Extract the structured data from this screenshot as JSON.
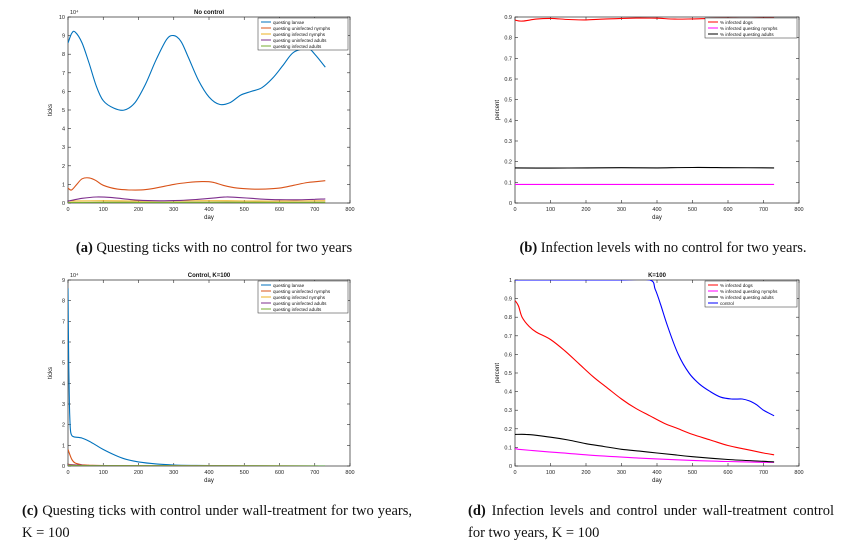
{
  "captions": [
    {
      "letter": "(a)",
      "text": "Questing ticks with no control for two years"
    },
    {
      "letter": "(b)",
      "text": "Infection levels with no control for two years."
    },
    {
      "letter": "(c)",
      "text": "Questing ticks with control under wall-treatment for two years, K = 100"
    },
    {
      "letter": "(d)",
      "text": "Infection levels and control under wall-treatment control for two years, K = 100"
    }
  ],
  "chart_data": [
    {
      "id": "a",
      "type": "line",
      "title": "No control",
      "xlabel": "day",
      "ylabel": "ticks",
      "exponent_label": "10⁴",
      "xlim": [
        0,
        800
      ],
      "ylim": [
        0,
        10
      ],
      "xticks": [
        0,
        100,
        200,
        300,
        400,
        500,
        600,
        700,
        800
      ],
      "yticks": [
        0,
        1,
        2,
        3,
        4,
        5,
        6,
        7,
        8,
        9,
        10
      ],
      "legend_position": "top-right",
      "series": [
        {
          "name": "questing larvae",
          "color": "#0072bd",
          "x": [
            0,
            10,
            20,
            40,
            60,
            80,
            100,
            130,
            160,
            190,
            220,
            250,
            280,
            300,
            320,
            340,
            370,
            400,
            430,
            460,
            490,
            520,
            550,
            580,
            610,
            640,
            680,
            700,
            730
          ],
          "y": [
            8.6,
            9.1,
            9.2,
            8.6,
            7.5,
            6.3,
            5.5,
            5.1,
            5.0,
            5.4,
            6.4,
            7.7,
            8.8,
            9.0,
            8.7,
            7.9,
            6.6,
            5.7,
            5.3,
            5.4,
            5.8,
            6.0,
            6.2,
            6.7,
            7.4,
            8.1,
            8.3,
            8.0,
            7.3
          ]
        },
        {
          "name": "questing uninfected nymphs",
          "color": "#d95319",
          "x": [
            0,
            10,
            25,
            40,
            60,
            80,
            100,
            140,
            180,
            220,
            260,
            300,
            340,
            380,
            410,
            440,
            480,
            520,
            560,
            600,
            640,
            680,
            730
          ],
          "y": [
            0.8,
            0.7,
            1.0,
            1.3,
            1.35,
            1.2,
            0.95,
            0.75,
            0.7,
            0.72,
            0.85,
            1.0,
            1.1,
            1.15,
            1.12,
            0.95,
            0.8,
            0.75,
            0.75,
            0.8,
            0.95,
            1.1,
            1.2
          ]
        },
        {
          "name": "questing infected nymphs",
          "color": "#edb120",
          "x": [
            0,
            100,
            200,
            300,
            400,
            500,
            600,
            730
          ],
          "y": [
            0.1,
            0.12,
            0.1,
            0.11,
            0.12,
            0.11,
            0.1,
            0.12
          ]
        },
        {
          "name": "questing uninfected adults",
          "color": "#7e2f8e",
          "x": [
            0,
            40,
            80,
            120,
            160,
            200,
            260,
            320,
            370,
            420,
            450,
            480,
            520,
            560,
            600,
            650,
            700,
            730
          ],
          "y": [
            0.1,
            0.25,
            0.32,
            0.3,
            0.22,
            0.15,
            0.12,
            0.14,
            0.2,
            0.28,
            0.33,
            0.3,
            0.25,
            0.2,
            0.18,
            0.17,
            0.2,
            0.22
          ]
        },
        {
          "name": "questing infected adults",
          "color": "#77ac30",
          "x": [
            0,
            100,
            200,
            300,
            400,
            500,
            600,
            730
          ],
          "y": [
            0.02,
            0.04,
            0.03,
            0.03,
            0.04,
            0.04,
            0.03,
            0.04
          ]
        }
      ]
    },
    {
      "id": "b",
      "type": "line",
      "title": "",
      "xlabel": "day",
      "ylabel": "percent",
      "xlim": [
        0,
        800
      ],
      "ylim": [
        0,
        0.9
      ],
      "xticks": [
        0,
        100,
        200,
        300,
        400,
        500,
        600,
        700,
        800
      ],
      "yticks": [
        0,
        0.1,
        0.2,
        0.3,
        0.4,
        0.5,
        0.6,
        0.7,
        0.8,
        0.9
      ],
      "legend_position": "top-right",
      "series": [
        {
          "name": "% infected dogs",
          "color": "#ff0000",
          "x": [
            0,
            20,
            60,
            100,
            150,
            200,
            250,
            300,
            350,
            400,
            450,
            500,
            550,
            600,
            650,
            700,
            730
          ],
          "y": [
            0.885,
            0.88,
            0.89,
            0.893,
            0.888,
            0.886,
            0.89,
            0.893,
            0.895,
            0.894,
            0.89,
            0.891,
            0.893,
            0.894,
            0.893,
            0.895,
            0.895
          ]
        },
        {
          "name": "% infected questing nymphs",
          "color": "#ff00ff",
          "x": [
            0,
            730
          ],
          "y": [
            0.09,
            0.09
          ]
        },
        {
          "name": "% infected questing adults",
          "color": "#000000",
          "x": [
            0,
            100,
            200,
            300,
            400,
            500,
            600,
            730
          ],
          "y": [
            0.17,
            0.169,
            0.17,
            0.171,
            0.17,
            0.172,
            0.171,
            0.17
          ]
        }
      ]
    },
    {
      "id": "c",
      "type": "line",
      "title": "Control, K=100",
      "xlabel": "day",
      "ylabel": "ticks",
      "exponent_label": "10⁴",
      "xlim": [
        0,
        800
      ],
      "ylim": [
        0,
        9
      ],
      "xticks": [
        0,
        100,
        200,
        300,
        400,
        500,
        600,
        700,
        800
      ],
      "yticks": [
        0,
        1,
        2,
        3,
        4,
        5,
        6,
        7,
        8,
        9
      ],
      "legend_position": "top-right",
      "series": [
        {
          "name": "questing larvae",
          "color": "#0072bd",
          "x": [
            0,
            2,
            4,
            6,
            8,
            12,
            20,
            40,
            60,
            80,
            100,
            130,
            160,
            200,
            250,
            300,
            350,
            400,
            500,
            600,
            730
          ],
          "y": [
            8.6,
            5.0,
            3.0,
            2.0,
            1.6,
            1.45,
            1.4,
            1.35,
            1.2,
            1.0,
            0.8,
            0.55,
            0.35,
            0.2,
            0.1,
            0.05,
            0.03,
            0.02,
            0.01,
            0.005,
            0.003
          ]
        },
        {
          "name": "questing uninfected nymphs",
          "color": "#d95319",
          "x": [
            0,
            10,
            20,
            40,
            60,
            100,
            200,
            400,
            730
          ],
          "y": [
            0.8,
            0.35,
            0.15,
            0.06,
            0.04,
            0.02,
            0.01,
            0.005,
            0.002
          ]
        },
        {
          "name": "questing infected nymphs",
          "color": "#edb120",
          "x": [
            0,
            40,
            100,
            730
          ],
          "y": [
            0.08,
            0.04,
            0.02,
            0.0
          ]
        },
        {
          "name": "questing uninfected adults",
          "color": "#7e2f8e",
          "x": [
            0,
            40,
            100,
            730
          ],
          "y": [
            0.06,
            0.04,
            0.02,
            0.0
          ]
        },
        {
          "name": "questing infected adults",
          "color": "#77ac30",
          "x": [
            0,
            100,
            730
          ],
          "y": [
            0.02,
            0.01,
            0.0
          ]
        }
      ]
    },
    {
      "id": "d",
      "type": "line",
      "title": "K=100",
      "xlabel": "day",
      "ylabel": "percent",
      "xlim": [
        0,
        800
      ],
      "ylim": [
        0,
        1
      ],
      "xticks": [
        0,
        100,
        200,
        300,
        400,
        500,
        600,
        700,
        800
      ],
      "yticks": [
        0,
        0.1,
        0.2,
        0.3,
        0.4,
        0.5,
        0.6,
        0.7,
        0.8,
        0.9,
        1
      ],
      "legend_position": "top-right",
      "series": [
        {
          "name": "% infected dogs",
          "color": "#ff0000",
          "x": [
            0,
            10,
            20,
            40,
            60,
            100,
            140,
            180,
            220,
            260,
            300,
            340,
            380,
            420,
            460,
            500,
            550,
            600,
            650,
            700,
            730
          ],
          "y": [
            0.89,
            0.86,
            0.8,
            0.75,
            0.72,
            0.68,
            0.62,
            0.55,
            0.48,
            0.42,
            0.36,
            0.31,
            0.27,
            0.23,
            0.2,
            0.17,
            0.14,
            0.11,
            0.09,
            0.07,
            0.06
          ]
        },
        {
          "name": "% infected questing nymphs",
          "color": "#ff00ff",
          "x": [
            0,
            10,
            50,
            100,
            150,
            200,
            300,
            400,
            500,
            600,
            700,
            730
          ],
          "y": [
            0.095,
            0.09,
            0.083,
            0.075,
            0.068,
            0.06,
            0.048,
            0.038,
            0.03,
            0.024,
            0.02,
            0.02
          ]
        },
        {
          "name": "% infected questing adults",
          "color": "#000000",
          "x": [
            0,
            30,
            60,
            100,
            150,
            200,
            250,
            300,
            350,
            400,
            450,
            500,
            600,
            700,
            730
          ],
          "y": [
            0.17,
            0.17,
            0.165,
            0.155,
            0.14,
            0.12,
            0.105,
            0.09,
            0.08,
            0.07,
            0.06,
            0.05,
            0.035,
            0.025,
            0.022
          ]
        },
        {
          "name": "control",
          "color": "#0000ff",
          "x": [
            0,
            100,
            200,
            300,
            380,
            395,
            410,
            430,
            460,
            490,
            520,
            550,
            580,
            610,
            640,
            660,
            680,
            700,
            730
          ],
          "y": [
            1.0,
            1.0,
            1.0,
            1.0,
            1.0,
            0.95,
            0.87,
            0.75,
            0.6,
            0.5,
            0.44,
            0.4,
            0.37,
            0.36,
            0.36,
            0.35,
            0.33,
            0.3,
            0.27
          ]
        }
      ]
    }
  ]
}
